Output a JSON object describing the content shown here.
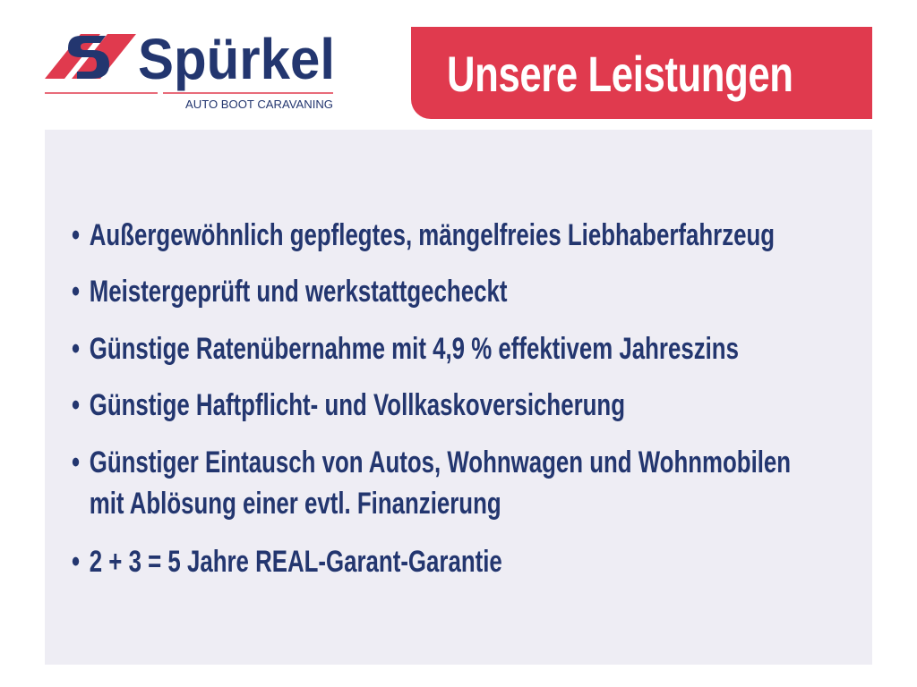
{
  "logo": {
    "name": "Spürkel",
    "tagline": "AUTO BOOT CARAVANING",
    "colors": {
      "navy": "#23366f",
      "red": "#e03a4e"
    }
  },
  "banner": {
    "title": "Unsere Leistungen"
  },
  "list": {
    "bullet": "•",
    "items": [
      {
        "lines": [
          "Außergewöhnlich gepflegtes, mängelfreies Liebhaberfahrzeug"
        ]
      },
      {
        "lines": [
          "Meistergeprüft und werkstattgecheckt"
        ]
      },
      {
        "lines": [
          "Günstige Ratenübernahme mit 4,9 % effektivem Jahreszins"
        ]
      },
      {
        "lines": [
          "Günstige Haftpflicht- und Vollkaskoversicherung"
        ]
      },
      {
        "lines": [
          "Günstiger Eintausch von Autos, Wohnwagen und Wohnmobilen",
          "mit Ablösung einer evtl. Finanzierung"
        ]
      },
      {
        "lines": [
          "2 + 3 = 5 Jahre REAL-Garant-Garantie"
        ]
      }
    ]
  }
}
